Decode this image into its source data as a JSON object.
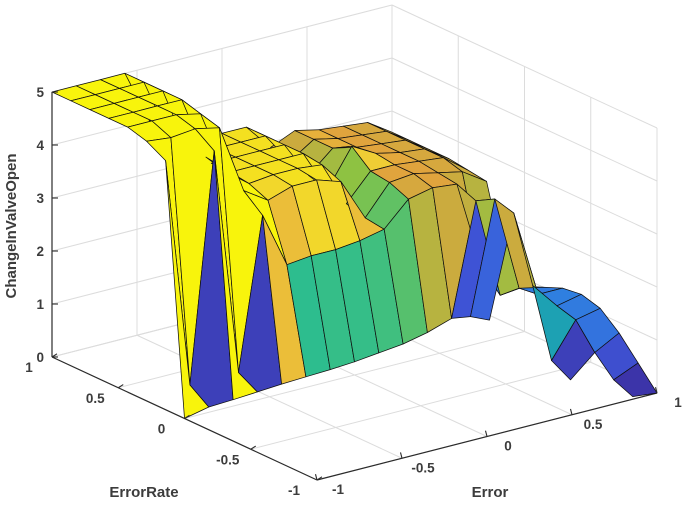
{
  "figure": {
    "background": "#ffffff"
  },
  "chart_data": {
    "type": "surface",
    "title": "",
    "xlabel": "Error",
    "ylabel": "ErrorRate",
    "zlabel": "ChangeInValveOpen",
    "x_range": [
      -1,
      1
    ],
    "y_range": [
      -1,
      1
    ],
    "z_range": [
      0,
      5
    ],
    "x_ticks": [
      -1,
      -0.5,
      0,
      0.5,
      1
    ],
    "x_tick_labels": [
      "-1",
      "-0.5",
      "0",
      "0.5",
      "1"
    ],
    "y_ticks": [
      -1,
      -0.5,
      0,
      0.5,
      1
    ],
    "y_tick_labels": [
      "-1",
      "-0.5",
      "0",
      "0.5",
      "1"
    ],
    "z_ticks": [
      0,
      1,
      2,
      3,
      4,
      5
    ],
    "z_tick_labels": [
      "0",
      "1",
      "2",
      "3",
      "4",
      "5"
    ],
    "grid": "on",
    "x": [
      -1,
      -0.857,
      -0.714,
      -0.571,
      -0.429,
      -0.286,
      -0.143,
      0,
      0.143,
      0.286,
      0.429,
      0.571,
      0.714,
      0.857,
      1
    ],
    "y": [
      -1,
      -0.857,
      -0.714,
      -0.571,
      -0.429,
      -0.286,
      -0.143,
      0,
      0.143,
      0.286,
      0.429,
      0.571,
      0.714,
      0.857,
      1
    ],
    "z": [
      [
        null,
        null,
        null,
        null,
        null,
        null,
        null,
        null,
        null,
        null,
        null,
        null,
        null,
        0.05,
        0.0
      ],
      [
        null,
        null,
        null,
        null,
        null,
        null,
        null,
        null,
        null,
        null,
        null,
        null,
        null,
        0.2,
        0.4
      ],
      [
        null,
        null,
        null,
        null,
        null,
        null,
        null,
        null,
        null,
        null,
        null,
        null,
        0.15,
        0.55,
        0.8
      ],
      [
        null,
        null,
        null,
        null,
        null,
        null,
        null,
        null,
        null,
        null,
        null,
        null,
        0.35,
        1.0,
        1.1
      ],
      [
        null,
        null,
        null,
        null,
        null,
        null,
        null,
        null,
        null,
        null,
        null,
        null,
        1.6,
        1.1,
        1.2
      ],
      [
        null,
        null,
        null,
        null,
        null,
        null,
        null,
        null,
        null,
        null,
        null,
        0.9,
        2.8,
        1.15,
        1.15
      ],
      [
        null,
        null,
        null,
        null,
        null,
        null,
        null,
        null,
        null,
        null,
        null,
        0.8,
        2.9,
        1.1,
        1.0
      ],
      [
        0.0,
        0.1,
        0.12,
        0.15,
        0.18,
        0.2,
        0.22,
        0.25,
        0.3,
        0.35,
        0.45,
        0.6,
        2.7,
        0.8,
        0.85
      ],
      [
        4.7,
        0.35,
        4.65,
        0.35,
        3.2,
        2.15,
        2.2,
        2.2,
        2.25,
        2.35,
        2.8,
        2.9,
        2.85,
        1.2,
        1.05
      ],
      [
        4.9,
        4.85,
        4.9,
        4.8,
        3.5,
        3.2,
        3.35,
        3.35,
        3.2,
        2.4,
        2.95,
        3.0,
        2.9,
        2.8,
        2.5
      ],
      [
        5,
        5,
        5,
        4.9,
        3.7,
        3.35,
        3.4,
        3.4,
        3.35,
        2.5,
        3.0,
        3.0,
        2.95,
        2.9,
        2.55
      ],
      [
        5,
        5,
        5,
        5,
        3.8,
        3.4,
        3.4,
        3.4,
        3.4,
        2.6,
        3.3,
        3.05,
        2.95,
        2.9,
        2.6
      ],
      [
        5,
        5,
        5,
        5,
        3.8,
        3.4,
        3.4,
        3.4,
        3.4,
        2.7,
        3.1,
        3.0,
        2.95,
        2.9,
        2.6
      ],
      [
        5,
        5,
        5,
        5,
        3.9,
        3.4,
        3.4,
        3.4,
        3.4,
        2.8,
        3.1,
        3.0,
        2.95,
        2.9,
        2.6
      ],
      [
        5,
        5,
        5,
        5,
        4.0,
        3.4,
        3.4,
        3.4,
        3.4,
        2.9,
        3.1,
        3.0,
        2.95,
        2.9,
        2.6
      ]
    ],
    "colormap": [
      [
        0.0,
        "#3B2593"
      ],
      [
        0.18,
        "#3E55D8"
      ],
      [
        0.33,
        "#2F7FE0"
      ],
      [
        0.5,
        "#17ACA4"
      ],
      [
        0.62,
        "#2EBE8D"
      ],
      [
        0.74,
        "#8CC342"
      ],
      [
        0.86,
        "#E2A33D"
      ],
      [
        0.94,
        "#EFCB37"
      ],
      [
        1.0,
        "#F8F40C"
      ]
    ],
    "color_max": 3.5,
    "edge_color": "#101010",
    "grid_color": "#dcdcdc",
    "axis_color": "#2b2b2b",
    "text_color": "#3c3c3c",
    "view": {
      "origin": [
        317,
        480
      ],
      "e_vec": [
        170,
        -43.5
      ],
      "er_vec": [
        -132.5,
        -61.5
      ],
      "z_vec": [
        0,
        -53
      ],
      "depth": [
        0.609,
        -0.793
      ]
    }
  }
}
